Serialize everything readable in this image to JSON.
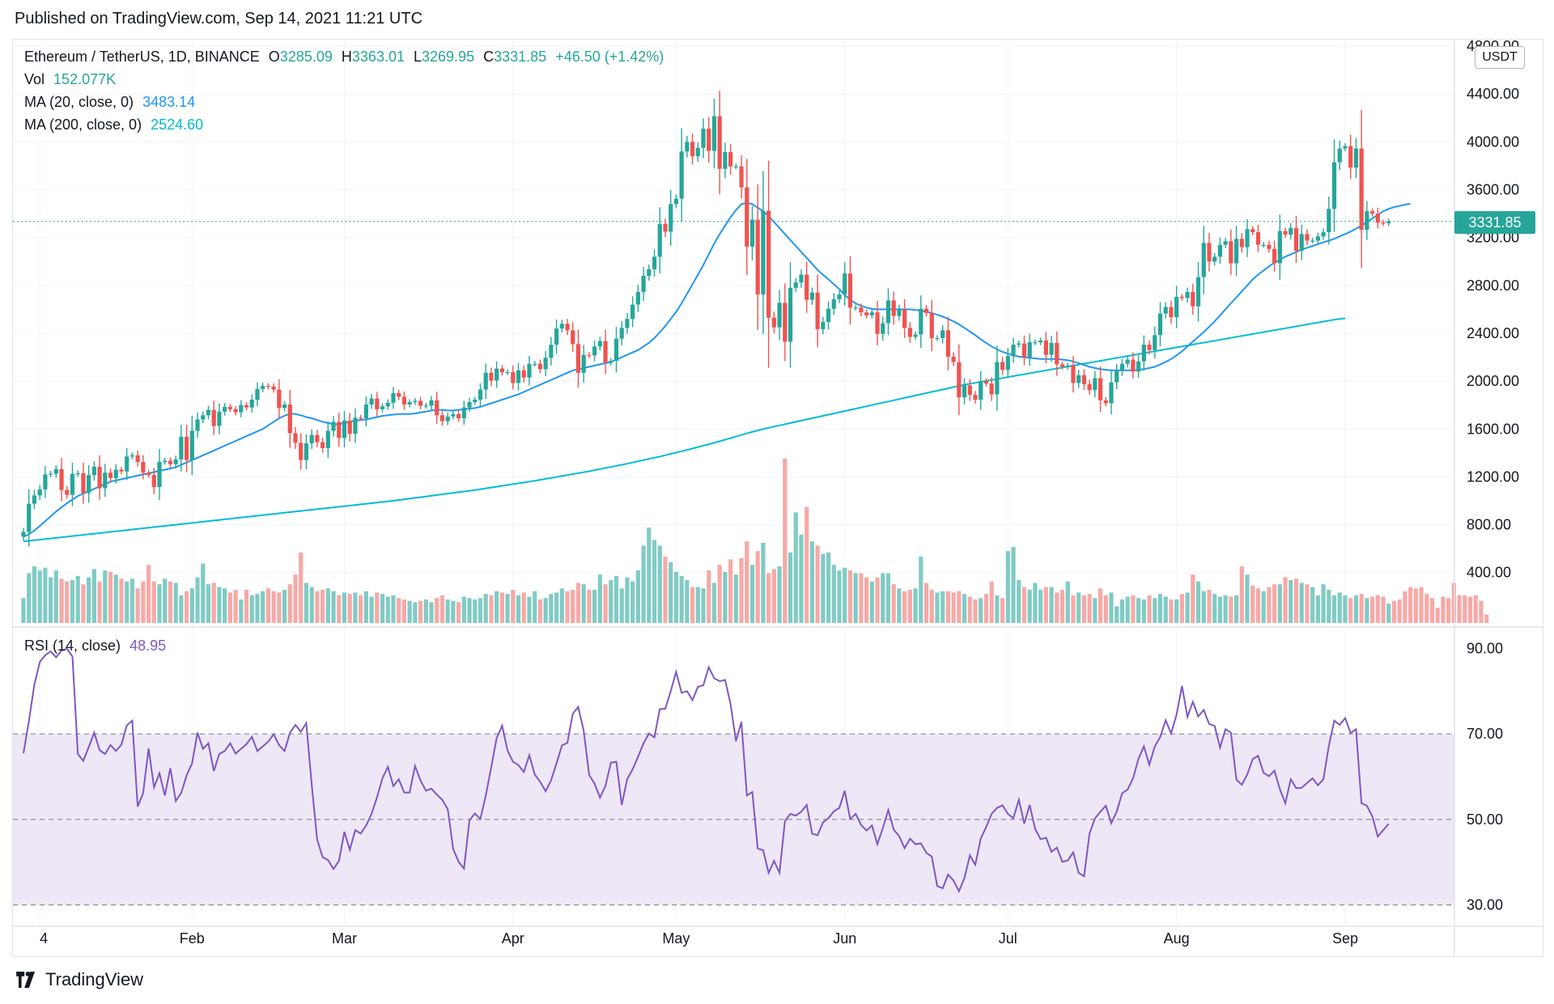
{
  "header": {
    "published": "Published on TradingView.com, Sep 14, 2021 11:21 UTC"
  },
  "legend": {
    "symbol": "Ethereum / TetherUS, 1D, BINANCE",
    "open_key": "O",
    "open": "3285.09",
    "high_key": "H",
    "high": "3363.01",
    "low_key": "L",
    "low": "3269.95",
    "close_key": "C",
    "close": "3331.85",
    "change": "+46.50 (+1.42%)",
    "vol_label": "Vol",
    "vol_value": "152.077K",
    "ma20_label": "MA (20, close, 0)",
    "ma20_value": "3483.14",
    "ma200_label": "MA (200, close, 0)",
    "ma200_value": "2524.60",
    "rsi_label": "RSI (14, close)",
    "rsi_value": "48.95"
  },
  "currency": "USDT",
  "last_price_tag": "3331.85",
  "footer": {
    "brand": "TradingView"
  },
  "colors": {
    "up": "#26a69a",
    "down": "#ef5350",
    "ma20": "#2196f3",
    "ma200": "#00bcd4",
    "rsi": "#7e57c2",
    "rsi_band": "#ede7f6",
    "up_vol": "#80cbc4",
    "down_vol": "#f7a9a7"
  },
  "chart_data": [
    {
      "type": "candlestick",
      "title": "Ethereum / TetherUS, 1D, BINANCE",
      "ylabel": "USDT",
      "yticks": [
        "4800.00",
        "4400.00",
        "4000.00",
        "3600.00",
        "3200.00",
        "2800.00",
        "2400.00",
        "2000.00",
        "1600.00",
        "1200.00",
        "800.00",
        "400.00"
      ],
      "ytick_values": [
        4800,
        4400,
        4000,
        3600,
        3200,
        2800,
        2400,
        2000,
        1600,
        1200,
        800,
        400
      ],
      "ylim": [
        -55,
        4848
      ],
      "xticks": [
        "4",
        "Feb",
        "Mar",
        "Apr",
        "May",
        "Jun",
        "Jul",
        "Aug",
        "Sep"
      ],
      "xtick_dates": [
        "2021-01-04",
        "2021-02-01",
        "2021-03-01",
        "2021-04-01",
        "2021-05-01",
        "2021-06-01",
        "2021-07-01",
        "2021-08-01",
        "2021-09-01"
      ],
      "x_start": "2021-01-01",
      "closes": [
        740,
        975,
        1045,
        1095,
        1220,
        1225,
        1265,
        1090,
        1050,
        1225,
        1230,
        1065,
        1215,
        1285,
        1105,
        1235,
        1190,
        1260,
        1245,
        1370,
        1380,
        1325,
        1235,
        1215,
        1115,
        1325,
        1335,
        1305,
        1345,
        1535,
        1340,
        1585,
        1680,
        1715,
        1760,
        1625,
        1745,
        1785,
        1765,
        1740,
        1800,
        1780,
        1845,
        1935,
        1960,
        1955,
        1930,
        1775,
        1805,
        1565,
        1485,
        1340,
        1480,
        1550,
        1490,
        1440,
        1585,
        1660,
        1525,
        1670,
        1560,
        1695,
        1690,
        1805,
        1855,
        1765,
        1790,
        1820,
        1900,
        1870,
        1805,
        1825,
        1835,
        1795,
        1795,
        1840,
        1715,
        1665,
        1705,
        1725,
        1690,
        1780,
        1825,
        1845,
        1930,
        2070,
        2005,
        2105,
        2075,
        2075,
        1985,
        2090,
        2030,
        2145,
        2145,
        2100,
        2195,
        2305,
        2440,
        2480,
        2425,
        2310,
        2070,
        2220,
        2215,
        2290,
        2335,
        2155,
        2170,
        2355,
        2445,
        2520,
        2640,
        2745,
        2880,
        2935,
        3040,
        3315,
        3250,
        3480,
        3525,
        3920,
        4000,
        3880,
        3950,
        4110,
        3925,
        4215,
        3775,
        3915,
        3795,
        3795,
        3620,
        3125,
        3350,
        2725,
        3425,
        2530,
        2450,
        2655,
        2330,
        2780,
        2825,
        2890,
        2680,
        2740,
        2435,
        2495,
        2605,
        2685,
        2725,
        2900,
        2615,
        2615,
        2575,
        2550,
        2575,
        2395,
        2485,
        2675,
        2545,
        2600,
        2445,
        2370,
        2390,
        2605,
        2570,
        2360,
        2360,
        2425,
        2205,
        2160,
        1865,
        1965,
        1885,
        1845,
        2000,
        1980,
        1890,
        2160,
        2095,
        2210,
        2305,
        2315,
        2200,
        2325,
        2325,
        2340,
        2220,
        2320,
        2140,
        2120,
        2130,
        1985,
        2050,
        1975,
        1925,
        2025,
        1840,
        1815,
        1990,
        2085,
        2145,
        2180,
        2080,
        2165,
        2305,
        2260,
        2385,
        2565,
        2620,
        2535,
        2705,
        2695,
        2745,
        2625,
        2870,
        3155,
        3000,
        3040,
        3140,
        3170,
        2985,
        3190,
        3120,
        3270,
        3245,
        3140,
        3140,
        3105,
        2985,
        3255,
        3225,
        3280,
        3090,
        3230,
        3175,
        3175,
        3210,
        3245,
        3440,
        3830,
        3945,
        3965,
        3785,
        3945,
        3265,
        3420,
        3400,
        3325,
        3320,
        3335
      ],
      "ma20": [
        700,
        720,
        750,
        790,
        830,
        870,
        910,
        945,
        980,
        1010,
        1040,
        1060,
        1080,
        1100,
        1120,
        1140,
        1160,
        1170,
        1180,
        1190,
        1200,
        1210,
        1220,
        1230,
        1240,
        1250,
        1260,
        1270,
        1280,
        1300,
        1320,
        1340,
        1360,
        1380,
        1400,
        1420,
        1440,
        1460,
        1480,
        1500,
        1520,
        1540,
        1560,
        1580,
        1600,
        1630,
        1660,
        1690,
        1710,
        1730,
        1725,
        1715,
        1700,
        1690,
        1675,
        1660,
        1650,
        1640,
        1640,
        1650,
        1660,
        1670,
        1675,
        1680,
        1690,
        1700,
        1710,
        1715,
        1720,
        1725,
        1725,
        1725,
        1730,
        1740,
        1745,
        1755,
        1760,
        1760,
        1755,
        1755,
        1760,
        1765,
        1770,
        1775,
        1785,
        1800,
        1815,
        1830,
        1845,
        1860,
        1875,
        1890,
        1910,
        1930,
        1950,
        1970,
        1990,
        2010,
        2030,
        2050,
        2070,
        2090,
        2100,
        2110,
        2120,
        2130,
        2140,
        2150,
        2160,
        2180,
        2200,
        2220,
        2240,
        2260,
        2290,
        2320,
        2360,
        2410,
        2460,
        2520,
        2580,
        2650,
        2730,
        2810,
        2890,
        2970,
        3060,
        3150,
        3230,
        3300,
        3370,
        3430,
        3480,
        3490,
        3480,
        3450,
        3420,
        3380,
        3330,
        3280,
        3230,
        3180,
        3130,
        3080,
        3030,
        2980,
        2930,
        2890,
        2850,
        2810,
        2770,
        2720,
        2680,
        2650,
        2630,
        2615,
        2605,
        2600,
        2600,
        2600,
        2600,
        2600,
        2600,
        2600,
        2595,
        2590,
        2580,
        2570,
        2555,
        2540,
        2520,
        2500,
        2475,
        2445,
        2415,
        2385,
        2350,
        2320,
        2290,
        2265,
        2245,
        2230,
        2215,
        2205,
        2200,
        2195,
        2190,
        2185,
        2185,
        2185,
        2185,
        2180,
        2175,
        2165,
        2150,
        2135,
        2120,
        2110,
        2100,
        2095,
        2090,
        2090,
        2090,
        2090,
        2090,
        2095,
        2100,
        2110,
        2120,
        2140,
        2160,
        2185,
        2215,
        2250,
        2290,
        2330,
        2370,
        2410,
        2455,
        2500,
        2550,
        2600,
        2650,
        2700,
        2750,
        2800,
        2850,
        2890,
        2925,
        2960,
        2990,
        3015,
        3040,
        3060,
        3080,
        3100,
        3115,
        3130,
        3145,
        3160,
        3175,
        3190,
        3210,
        3230,
        3250,
        3275,
        3300,
        3330,
        3360,
        3390,
        3420,
        3440,
        3455,
        3465,
        3475,
        3483
      ],
      "ma200": [
        660,
        665,
        670,
        675,
        680,
        685,
        690,
        695,
        700,
        705,
        710,
        715,
        720,
        725,
        730,
        735,
        740,
        745,
        750,
        755,
        760,
        765,
        770,
        775,
        780,
        785,
        790,
        795,
        800,
        805,
        810,
        815,
        820,
        825,
        830,
        835,
        840,
        845,
        850,
        855,
        860,
        865,
        870,
        875,
        880,
        885,
        890,
        895,
        900,
        905,
        910,
        915,
        920,
        925,
        930,
        935,
        940,
        945,
        950,
        955,
        960,
        965,
        970,
        975,
        980,
        985,
        990,
        995,
        1000,
        1006,
        1012,
        1018,
        1024,
        1030,
        1036,
        1042,
        1048,
        1054,
        1060,
        1066,
        1072,
        1078,
        1084,
        1090,
        1097,
        1104,
        1111,
        1118,
        1125,
        1132,
        1139,
        1146,
        1153,
        1160,
        1167,
        1175,
        1183,
        1191,
        1199,
        1207,
        1215,
        1223,
        1231,
        1239,
        1247,
        1256,
        1265,
        1274,
        1283,
        1292,
        1301,
        1310,
        1320,
        1330,
        1340,
        1350,
        1360,
        1370,
        1381,
        1392,
        1403,
        1414,
        1425,
        1437,
        1449,
        1461,
        1473,
        1485,
        1498,
        1511,
        1524,
        1537,
        1550,
        1563,
        1576,
        1588,
        1600,
        1610,
        1620,
        1630,
        1640,
        1650,
        1660,
        1670,
        1680,
        1690,
        1700,
        1710,
        1720,
        1730,
        1740,
        1750,
        1760,
        1770,
        1780,
        1790,
        1800,
        1810,
        1820,
        1830,
        1840,
        1850,
        1860,
        1870,
        1880,
        1890,
        1900,
        1910,
        1920,
        1930,
        1940,
        1950,
        1960,
        1970,
        1978,
        1986,
        1994,
        2002,
        2010,
        2018,
        2026,
        2034,
        2042,
        2050,
        2058,
        2066,
        2074,
        2082,
        2090,
        2098,
        2106,
        2114,
        2122,
        2130,
        2138,
        2146,
        2154,
        2162,
        2170,
        2178,
        2186,
        2194,
        2202,
        2210,
        2218,
        2226,
        2234,
        2242,
        2250,
        2258,
        2266,
        2274,
        2282,
        2290,
        2298,
        2306,
        2314,
        2322,
        2330,
        2338,
        2346,
        2354,
        2362,
        2370,
        2378,
        2386,
        2394,
        2402,
        2410,
        2418,
        2426,
        2434,
        2442,
        2450,
        2458,
        2466,
        2474,
        2482,
        2490,
        2498,
        2506,
        2514,
        2520,
        2525
      ],
      "volume": [
        180,
        360,
        410,
        380,
        400,
        330,
        380,
        320,
        300,
        310,
        340,
        280,
        330,
        390,
        300,
        380,
        370,
        350,
        320,
        300,
        320,
        250,
        300,
        420,
        300,
        280,
        320,
        300,
        290,
        200,
        230,
        250,
        330,
        430,
        280,
        290,
        260,
        250,
        220,
        240,
        170,
        240,
        200,
        210,
        230,
        250,
        230,
        220,
        240,
        280,
        350,
        510,
        290,
        260,
        230,
        240,
        250,
        230,
        200,
        220,
        210,
        220,
        200,
        230,
        190,
        220,
        210,
        190,
        200,
        180,
        170,
        160,
        150,
        160,
        170,
        150,
        180,
        200,
        170,
        160,
        150,
        190,
        180,
        170,
        180,
        210,
        200,
        230,
        220,
        210,
        240,
        200,
        220,
        190,
        230,
        170,
        180,
        210,
        220,
        250,
        230,
        240,
        290,
        280,
        240,
        240,
        350,
        280,
        310,
        340,
        250,
        330,
        300,
        380,
        560,
        690,
        600,
        560,
        480,
        440,
        370,
        340,
        310,
        260,
        260,
        250,
        380,
        290,
        420,
        370,
        460,
        350,
        470,
        590,
        420,
        520,
        580,
        360,
        390,
        410,
        1190,
        510,
        800,
        640,
        840,
        590,
        560,
        500,
        510,
        420,
        380,
        400,
        380,
        360,
        360,
        330,
        300,
        330,
        360,
        360,
        280,
        250,
        230,
        240,
        250,
        480,
        290,
        240,
        220,
        230,
        230,
        220,
        230,
        210,
        190,
        170,
        180,
        210,
        300,
        200,
        180,
        520,
        550,
        310,
        260,
        240,
        290,
        240,
        260,
        260,
        220,
        240,
        300,
        200,
        220,
        200,
        210,
        180,
        250,
        200,
        220,
        120,
        170,
        190,
        200,
        180,
        170,
        200,
        180,
        210,
        190,
        170,
        170,
        210,
        220,
        350,
        300,
        230,
        240,
        210,
        190,
        200,
        190,
        200,
        410,
        350,
        270,
        250,
        230,
        260,
        280,
        280,
        330,
        310,
        320,
        290,
        280,
        260,
        200,
        280,
        240,
        200,
        220,
        200,
        180,
        200,
        210,
        180,
        190,
        200,
        190,
        140,
        160,
        170,
        230,
        260,
        250,
        260,
        210,
        180,
        110,
        190,
        180,
        290,
        200,
        200,
        190,
        200,
        160,
        60
      ],
      "vol_ylim": [
        0,
        1200
      ]
    },
    {
      "type": "line",
      "title": "RSI (14, close)",
      "ylim": [
        25,
        95
      ],
      "yticks": [
        "90.00",
        "70.00",
        "50.00",
        "30.00"
      ],
      "ytick_values": [
        90,
        70,
        50,
        30
      ],
      "band": [
        30,
        70
      ],
      "midline": 50,
      "values": [
        65.5,
        73,
        81.5,
        86.8,
        88.4,
        89.3,
        87.9,
        89.5,
        89.9,
        88.1,
        65.3,
        63.7,
        66.9,
        70.3,
        66.2,
        65.3,
        67.4,
        66,
        67.5,
        72,
        73.1,
        53,
        56.1,
        66.6,
        57.5,
        60.8,
        55.6,
        62,
        54.3,
        56.2,
        60.3,
        63.1,
        70.3,
        66.5,
        67.8,
        61.3,
        65.3,
        66,
        67.8,
        65.4,
        66.5,
        67.6,
        69.3,
        66,
        67.1,
        68.2,
        69.9,
        67.4,
        66,
        70.3,
        72.1,
        70.5,
        72.5,
        58,
        45.2,
        41.2,
        40.5,
        38.4,
        40.3,
        47.1,
        42.9,
        47.5,
        46.7,
        48.6,
        51.3,
        55.2,
        59.6,
        62.3,
        57.8,
        59.4,
        56.3,
        56.3,
        62.5,
        59.1,
        56.7,
        57.2,
        55.8,
        54.6,
        52.4,
        43.1,
        40.1,
        38.5,
        49.8,
        51.4,
        50.1,
        55.6,
        62.2,
        69,
        71.9,
        66.1,
        63.5,
        62.7,
        61.1,
        65,
        60.5,
        58.8,
        56.6,
        59.1,
        63.1,
        67.3,
        67.9,
        74.7,
        76.3,
        70.7,
        60.4,
        58.4,
        55.1,
        57.8,
        63.3,
        63.5,
        53.4,
        59.4,
        61.7,
        64.7,
        67.8,
        70.1,
        69.2,
        75.8,
        75.9,
        80,
        84.5,
        79.6,
        80,
        77.9,
        81,
        81.4,
        85.6,
        83,
        82.3,
        82.6,
        77,
        68.3,
        72.8,
        55.6,
        56.4,
        43.2,
        42.8,
        37.5,
        40.3,
        37.5,
        49.6,
        51.3,
        50.9,
        51.8,
        53.4,
        46.7,
        46.3,
        49.3,
        50.3,
        51.9,
        52.7,
        56.7,
        50.1,
        51.3,
        48.7,
        47.4,
        48.6,
        44.2,
        48,
        52.2,
        47.6,
        46.1,
        43.3,
        45.5,
        44.2,
        44.4,
        42.2,
        41.3,
        34.4,
        33.9,
        37.1,
        35.7,
        33.2,
        36.3,
        41.6,
        39.4,
        45.5,
        48.2,
        51.3,
        52.7,
        53.3,
        51.3,
        50.3,
        54.6,
        49,
        53.4,
        47.8,
        45.4,
        45.7,
        42.4,
        43.4,
        40.1,
        40.4,
        42.3,
        37.5,
        36.7,
        46.7,
        50.2,
        51.8,
        53.2,
        49.1,
        51.8,
        56.1,
        57,
        59.6,
        64.2,
        67.1,
        62.8,
        67.1,
        69.3,
        73.2,
        70.1,
        74.5,
        81.2,
        74,
        77.5,
        74.1,
        75.6,
        72.3,
        71.9,
        66.8,
        71.1,
        70.3,
        59.3,
        58.1,
        60.5,
        64.1,
        64.9,
        60.9,
        60.1,
        61.4,
        57.1,
        53.8,
        59.4,
        57.3,
        57.4,
        58.5,
        59.6,
        58,
        59.4,
        67.2,
        73.1,
        72.1,
        73.7,
        70.2,
        71.1,
        53.8,
        53.2,
        50.7,
        46,
        47.5,
        48.95
      ]
    }
  ]
}
